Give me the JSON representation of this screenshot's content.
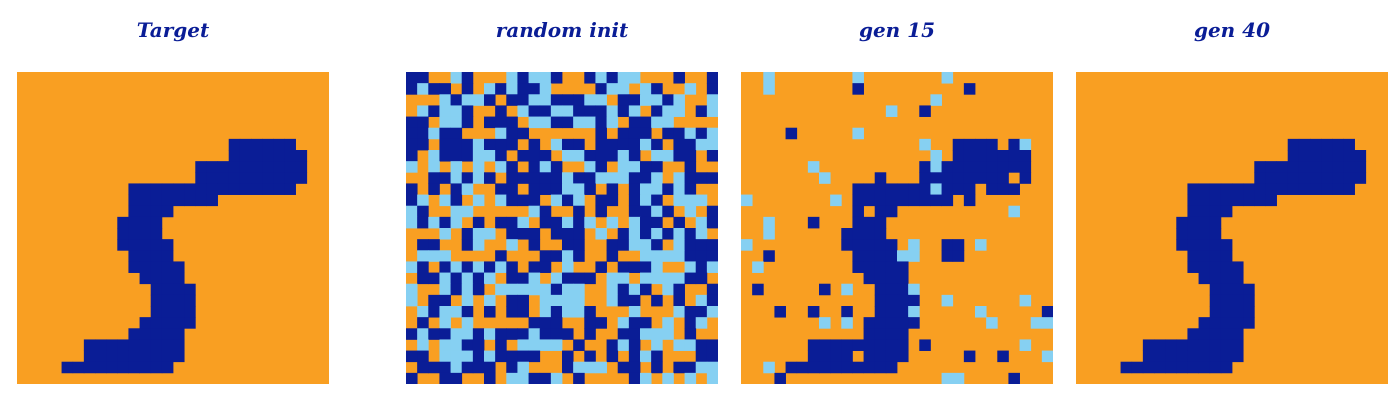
{
  "colors": {
    "background": "#f99f22",
    "digit": "#0a1d96",
    "noise": "#86d0f2",
    "title": "#0a1d96"
  },
  "grid_size": 28,
  "panels": [
    {
      "title": "Target",
      "image": "target"
    },
    {
      "title": "random init",
      "image": "random_noise"
    },
    {
      "title": "gen 15",
      "image": "partially_evolved_5"
    },
    {
      "title": "gen 40",
      "image": "target"
    }
  ],
  "digit_rows": [
    "............................",
    "............................",
    "............................",
    "............................",
    "............................",
    "............................",
    "...................######...",
    "...................#######..",
    "................##########..",
    "................##########..",
    "..........###############...",
    "..........########..........",
    "..........####..............",
    ".........####...............",
    ".........####...............",
    ".........#####..............",
    "..........####..............",
    "..........#####.............",
    "...........####.............",
    "............####............",
    "............####............",
    "............####............",
    "...........#####............",
    "..........#####.............",
    "......#########.............",
    "......#########.............",
    "....##########..............",
    "............................"
  ]
}
